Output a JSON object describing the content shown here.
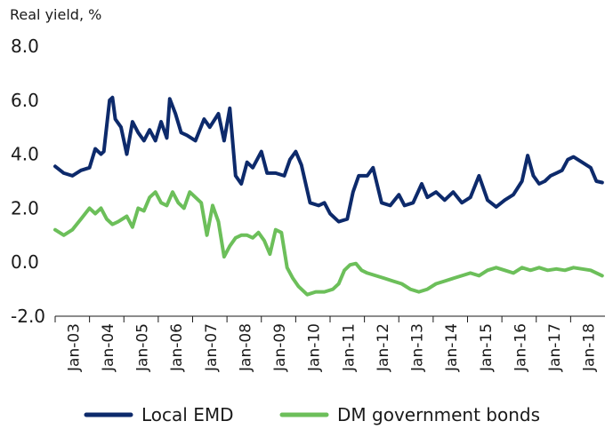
{
  "chart_data": {
    "type": "line",
    "ylabel": "Real yield, %",
    "ylim": [
      -2.0,
      8.0
    ],
    "yticks": [
      8.0,
      6.0,
      4.0,
      2.0,
      0.0,
      -2.0
    ],
    "ytick_labels": [
      "8.0",
      "6.0",
      "4.0",
      "2.0",
      "0.0",
      "-2.0"
    ],
    "x_tick_labels": [
      "Jan-03",
      "Jan-04",
      "Jan-05",
      "Jan-06",
      "Jan-07",
      "Jan-08",
      "Jan-09",
      "Jan-10",
      "Jan-11",
      "Jan-12",
      "Jan-13",
      "Jan-14",
      "Jan-15",
      "Jan-16",
      "Jan-17",
      "Jan-18"
    ],
    "xlim": [
      "2003-01",
      "2018-12"
    ],
    "grid": false,
    "legend_position": "bottom",
    "series": [
      {
        "name": "Local EMD",
        "color": "#0d2a6b",
        "points": [
          [
            "2003-01",
            3.55
          ],
          [
            "2003-04",
            3.3
          ],
          [
            "2003-07",
            3.2
          ],
          [
            "2003-10",
            3.4
          ],
          [
            "2004-01",
            3.5
          ],
          [
            "2004-03",
            4.2
          ],
          [
            "2004-05",
            4.0
          ],
          [
            "2004-06",
            4.1
          ],
          [
            "2004-08",
            6.0
          ],
          [
            "2004-09",
            6.1
          ],
          [
            "2004-10",
            5.3
          ],
          [
            "2004-12",
            5.0
          ],
          [
            "2005-02",
            4.0
          ],
          [
            "2005-04",
            5.2
          ],
          [
            "2005-06",
            4.8
          ],
          [
            "2005-08",
            4.5
          ],
          [
            "2005-10",
            4.9
          ],
          [
            "2005-12",
            4.5
          ],
          [
            "2006-02",
            5.2
          ],
          [
            "2006-04",
            4.6
          ],
          [
            "2006-05",
            6.05
          ],
          [
            "2006-07",
            5.5
          ],
          [
            "2006-09",
            4.8
          ],
          [
            "2006-11",
            4.7
          ],
          [
            "2007-02",
            4.5
          ],
          [
            "2007-05",
            5.3
          ],
          [
            "2007-07",
            5.0
          ],
          [
            "2007-10",
            5.5
          ],
          [
            "2007-12",
            4.5
          ],
          [
            "2008-02",
            5.7
          ],
          [
            "2008-04",
            3.2
          ],
          [
            "2008-06",
            2.9
          ],
          [
            "2008-08",
            3.7
          ],
          [
            "2008-10",
            3.5
          ],
          [
            "2009-01",
            4.1
          ],
          [
            "2009-03",
            3.3
          ],
          [
            "2009-06",
            3.3
          ],
          [
            "2009-09",
            3.2
          ],
          [
            "2009-11",
            3.8
          ],
          [
            "2010-01",
            4.1
          ],
          [
            "2010-03",
            3.6
          ],
          [
            "2010-06",
            2.2
          ],
          [
            "2010-09",
            2.1
          ],
          [
            "2010-11",
            2.2
          ],
          [
            "2011-01",
            1.8
          ],
          [
            "2011-04",
            1.5
          ],
          [
            "2011-07",
            1.6
          ],
          [
            "2011-09",
            2.6
          ],
          [
            "2011-11",
            3.2
          ],
          [
            "2012-02",
            3.2
          ],
          [
            "2012-04",
            3.5
          ],
          [
            "2012-07",
            2.2
          ],
          [
            "2012-10",
            2.1
          ],
          [
            "2013-01",
            2.5
          ],
          [
            "2013-03",
            2.1
          ],
          [
            "2013-06",
            2.2
          ],
          [
            "2013-09",
            2.9
          ],
          [
            "2013-11",
            2.4
          ],
          [
            "2014-02",
            2.6
          ],
          [
            "2014-05",
            2.3
          ],
          [
            "2014-08",
            2.6
          ],
          [
            "2014-11",
            2.2
          ],
          [
            "2015-02",
            2.4
          ],
          [
            "2015-05",
            3.2
          ],
          [
            "2015-08",
            2.3
          ],
          [
            "2015-11",
            2.05
          ],
          [
            "2016-02",
            2.3
          ],
          [
            "2016-05",
            2.5
          ],
          [
            "2016-08",
            3.0
          ],
          [
            "2016-10",
            3.95
          ],
          [
            "2016-12",
            3.2
          ],
          [
            "2017-02",
            2.9
          ],
          [
            "2017-04",
            3.0
          ],
          [
            "2017-06",
            3.2
          ],
          [
            "2017-08",
            3.3
          ],
          [
            "2017-10",
            3.4
          ],
          [
            "2017-12",
            3.8
          ],
          [
            "2018-02",
            3.9
          ],
          [
            "2018-05",
            3.7
          ],
          [
            "2018-08",
            3.5
          ],
          [
            "2018-10",
            3.0
          ],
          [
            "2018-12",
            2.95
          ]
        ]
      },
      {
        "name": "DM government bonds",
        "color": "#6cbf5a",
        "points": [
          [
            "2003-01",
            1.2
          ],
          [
            "2003-04",
            1.0
          ],
          [
            "2003-07",
            1.2
          ],
          [
            "2003-10",
            1.6
          ],
          [
            "2004-01",
            2.0
          ],
          [
            "2004-03",
            1.8
          ],
          [
            "2004-05",
            2.0
          ],
          [
            "2004-07",
            1.6
          ],
          [
            "2004-09",
            1.4
          ],
          [
            "2004-11",
            1.5
          ],
          [
            "2005-02",
            1.7
          ],
          [
            "2005-04",
            1.3
          ],
          [
            "2005-06",
            2.0
          ],
          [
            "2005-08",
            1.9
          ],
          [
            "2005-10",
            2.4
          ],
          [
            "2005-12",
            2.6
          ],
          [
            "2006-02",
            2.2
          ],
          [
            "2006-04",
            2.1
          ],
          [
            "2006-06",
            2.6
          ],
          [
            "2006-08",
            2.2
          ],
          [
            "2006-10",
            2.0
          ],
          [
            "2006-12",
            2.6
          ],
          [
            "2007-02",
            2.4
          ],
          [
            "2007-04",
            2.2
          ],
          [
            "2007-06",
            1.0
          ],
          [
            "2007-08",
            2.1
          ],
          [
            "2007-10",
            1.5
          ],
          [
            "2007-12",
            0.2
          ],
          [
            "2008-02",
            0.6
          ],
          [
            "2008-04",
            0.9
          ],
          [
            "2008-06",
            1.0
          ],
          [
            "2008-08",
            1.0
          ],
          [
            "2008-10",
            0.9
          ],
          [
            "2008-12",
            1.1
          ],
          [
            "2009-02",
            0.8
          ],
          [
            "2009-04",
            0.3
          ],
          [
            "2009-06",
            1.2
          ],
          [
            "2009-08",
            1.1
          ],
          [
            "2009-10",
            -0.2
          ],
          [
            "2009-12",
            -0.6
          ],
          [
            "2010-02",
            -0.9
          ],
          [
            "2010-05",
            -1.2
          ],
          [
            "2010-08",
            -1.1
          ],
          [
            "2010-11",
            -1.1
          ],
          [
            "2011-02",
            -1.0
          ],
          [
            "2011-04",
            -0.8
          ],
          [
            "2011-06",
            -0.3
          ],
          [
            "2011-08",
            -0.1
          ],
          [
            "2011-10",
            -0.05
          ],
          [
            "2011-12",
            -0.3
          ],
          [
            "2012-02",
            -0.4
          ],
          [
            "2012-05",
            -0.5
          ],
          [
            "2012-08",
            -0.6
          ],
          [
            "2012-11",
            -0.7
          ],
          [
            "2013-02",
            -0.8
          ],
          [
            "2013-05",
            -1.0
          ],
          [
            "2013-08",
            -1.1
          ],
          [
            "2013-11",
            -1.0
          ],
          [
            "2014-02",
            -0.8
          ],
          [
            "2014-05",
            -0.7
          ],
          [
            "2014-08",
            -0.6
          ],
          [
            "2014-11",
            -0.5
          ],
          [
            "2015-02",
            -0.4
          ],
          [
            "2015-05",
            -0.5
          ],
          [
            "2015-08",
            -0.3
          ],
          [
            "2015-11",
            -0.2
          ],
          [
            "2016-02",
            -0.3
          ],
          [
            "2016-05",
            -0.4
          ],
          [
            "2016-08",
            -0.2
          ],
          [
            "2016-11",
            -0.3
          ],
          [
            "2017-02",
            -0.2
          ],
          [
            "2017-05",
            -0.3
          ],
          [
            "2017-08",
            -0.25
          ],
          [
            "2017-11",
            -0.3
          ],
          [
            "2018-02",
            -0.2
          ],
          [
            "2018-05",
            -0.25
          ],
          [
            "2018-08",
            -0.3
          ],
          [
            "2018-12",
            -0.5
          ]
        ]
      }
    ]
  }
}
